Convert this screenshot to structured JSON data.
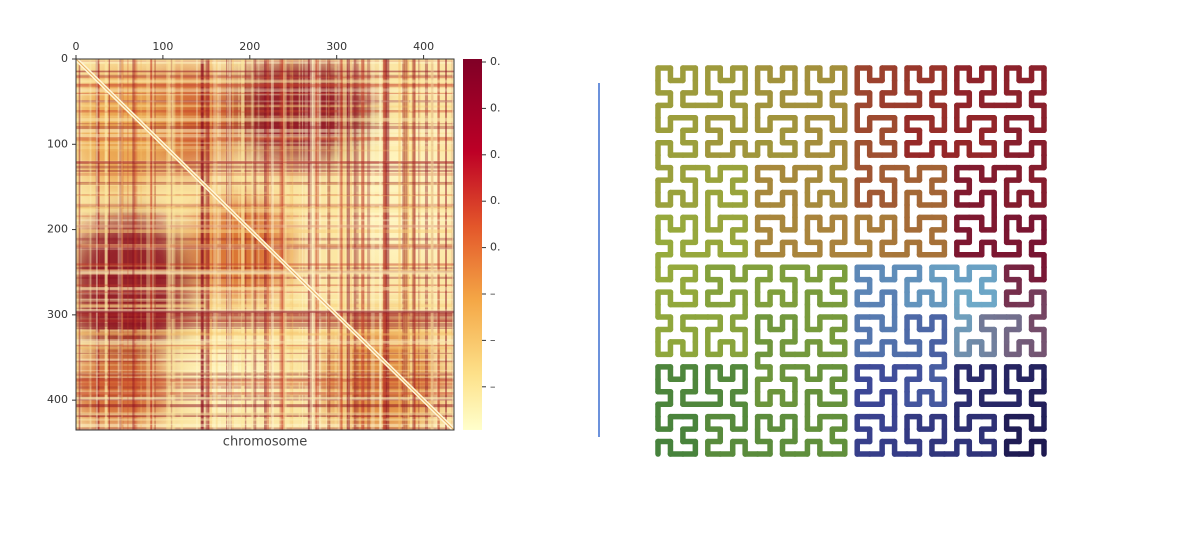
{
  "heatmap": {
    "xlim": [
      0,
      435
    ],
    "ylim": [
      0,
      435
    ],
    "x_ticks": [
      0,
      100,
      200,
      300,
      400
    ],
    "y_ticks": [
      0,
      100,
      200,
      300,
      400
    ],
    "x_label": "chromosome",
    "colorbar_labels": [
      "0.",
      "0.",
      "0.",
      "0.",
      "0.",
      "–",
      "–",
      "–"
    ]
  }
}
